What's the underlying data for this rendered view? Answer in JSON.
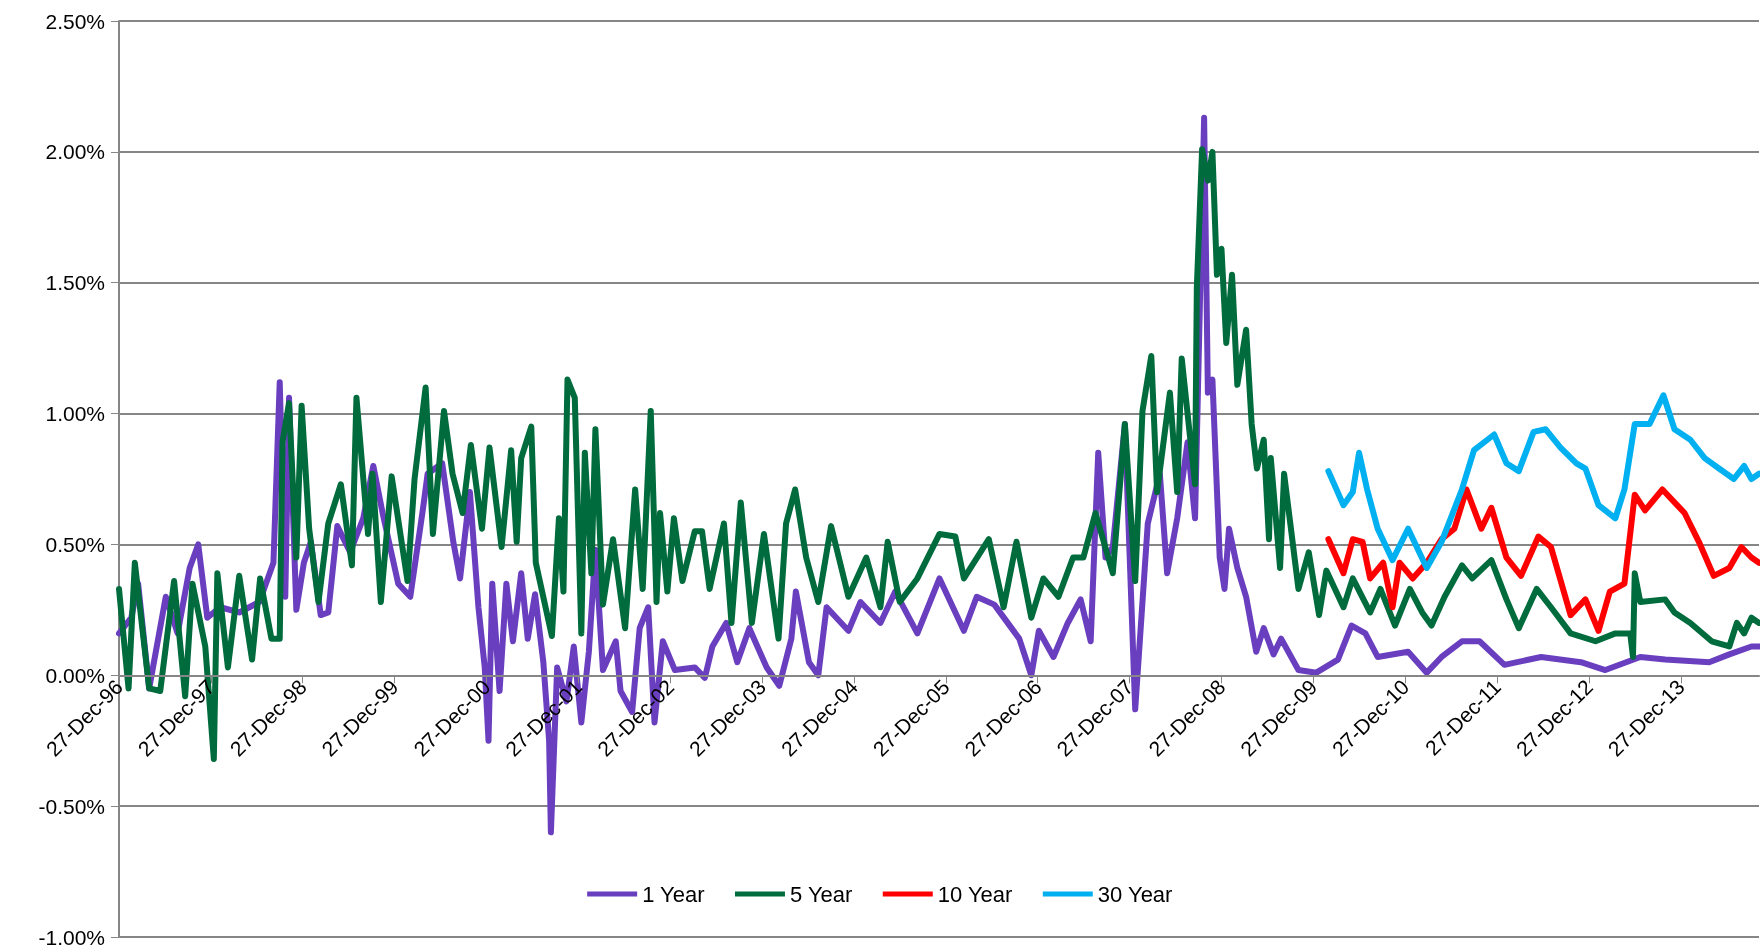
{
  "chart_data": {
    "type": "line",
    "grid": "y",
    "legend": "bottom",
    "line_style": "solid",
    "xlim": [
      "1996-12-27",
      "2014-11-03"
    ],
    "xticks": [
      {
        "value": "1996-12-27",
        "label": "27-Dec-96"
      },
      {
        "value": "1997-12-27",
        "label": "27-Dec-97"
      },
      {
        "value": "1998-12-27",
        "label": "27-Dec-98"
      },
      {
        "value": "1999-12-27",
        "label": "27-Dec-99"
      },
      {
        "value": "2000-12-27",
        "label": "27-Dec-00"
      },
      {
        "value": "2001-12-27",
        "label": "27-Dec-01"
      },
      {
        "value": "2002-12-27",
        "label": "27-Dec-02"
      },
      {
        "value": "2003-12-27",
        "label": "27-Dec-03"
      },
      {
        "value": "2004-12-27",
        "label": "27-Dec-04"
      },
      {
        "value": "2005-12-27",
        "label": "27-Dec-05"
      },
      {
        "value": "2006-12-27",
        "label": "27-Dec-06"
      },
      {
        "value": "2007-12-27",
        "label": "27-Dec-07"
      },
      {
        "value": "2008-12-27",
        "label": "27-Dec-08"
      },
      {
        "value": "2009-12-27",
        "label": "27-Dec-09"
      },
      {
        "value": "2010-12-27",
        "label": "27-Dec-10"
      },
      {
        "value": "2011-12-27",
        "label": "27-Dec-11"
      },
      {
        "value": "2012-12-27",
        "label": "27-Dec-12"
      },
      {
        "value": "2013-12-27",
        "label": "27-Dec-13"
      }
    ],
    "ylim": [
      -1,
      2.5
    ],
    "yticks": [
      {
        "value": -1,
        "label": "-1.00%"
      },
      {
        "value": -0.5,
        "label": "-0.50%"
      },
      {
        "value": 0,
        "label": "0.00%"
      },
      {
        "value": 0.5,
        "label": "0.50%"
      },
      {
        "value": 1,
        "label": "1.00%"
      },
      {
        "value": 1.5,
        "label": "1.50%"
      },
      {
        "value": 2,
        "label": "2.00%"
      },
      {
        "value": 2.5,
        "label": "2.50%"
      }
    ],
    "series": [
      {
        "name": "1 Year",
        "color": "#6a3fbf",
        "x": [
          "1996-12-27",
          "1997-02-14",
          "1997-03-13",
          "1997-04-26",
          "1997-07-01",
          "1997-08-17",
          "1997-10-04",
          "1997-11-07",
          "1997-12-13",
          "1998-02-03",
          "1998-04-19",
          "1998-07-08",
          "1998-09-02",
          "1998-09-27",
          "1998-10-19",
          "1998-11-03",
          "1998-12-02",
          "1999-01-01",
          "1999-01-29",
          "1999-03-09",
          "1999-04-08",
          "1999-05-14",
          "1999-07-04",
          "1999-08-25",
          "1999-10-04",
          "1999-11-10",
          "2000-01-11",
          "2000-02-28",
          "2000-04-19",
          "2000-05-07",
          "2000-07-04",
          "2000-08-17",
          "2000-09-13",
          "2000-10-22",
          "2000-11-25",
          "2000-12-20",
          "2001-01-04",
          "2001-01-19",
          "2001-02-17",
          "2001-03-16",
          "2001-04-11",
          "2001-05-14",
          "2001-06-09",
          "2001-07-08",
          "2001-08-10",
          "2001-09-02",
          "2001-09-09",
          "2001-10-04",
          "2001-11-10",
          "2001-12-09",
          "2002-01-08",
          "2002-02-07",
          "2002-03-05",
          "2002-04-04",
          "2002-05-25",
          "2002-06-13",
          "2002-07-29",
          "2002-08-28",
          "2002-10-01",
          "2002-10-26",
          "2002-11-28",
          "2003-01-15",
          "2003-04-04",
          "2003-05-14",
          "2003-06-13",
          "2003-08-07",
          "2003-09-20",
          "2003-11-07",
          "2004-01-15",
          "2004-03-05",
          "2004-04-22",
          "2004-05-10",
          "2004-07-01",
          "2004-08-07",
          "2004-09-09",
          "2004-12-05",
          "2005-01-22",
          "2005-04-11",
          "2005-06-09",
          "2005-09-05",
          "2005-12-02",
          "2006-03-09",
          "2006-04-29",
          "2006-07-08",
          "2006-10-15",
          "2006-12-02",
          "2007-01-01",
          "2007-02-28",
          "2007-04-26",
          "2007-06-16",
          "2007-07-26",
          "2007-08-25",
          "2007-09-23",
          "2007-10-22",
          "2007-12-09",
          "2008-01-19",
          "2008-03-09",
          "2008-04-26",
          "2008-05-25",
          "2008-07-04",
          "2008-08-14",
          "2008-09-13",
          "2008-10-19",
          "2008-11-03",
          "2008-11-21",
          "2008-12-20",
          "2009-01-08",
          "2009-01-26",
          "2009-02-28",
          "2009-04-04",
          "2009-05-14",
          "2009-06-13",
          "2009-07-22",
          "2009-08-21",
          "2009-10-29",
          "2010-01-08",
          "2010-04-04",
          "2010-05-28",
          "2010-07-22",
          "2010-09-09",
          "2011-01-08",
          "2011-03-23",
          "2011-05-21",
          "2011-08-10",
          "2011-10-19",
          "2012-01-26",
          "2012-06-20",
          "2012-11-25",
          "2013-03-02",
          "2013-07-19",
          "2013-10-26",
          "2014-04-19",
          "2014-07-08",
          "2014-10-04",
          "2014-11-03"
        ],
        "values": [
          0.16,
          0.22,
          0.35,
          -0.05,
          0.3,
          0.16,
          0.41,
          0.5,
          0.22,
          0.26,
          0.24,
          0.28,
          0.43,
          1.12,
          0.3,
          1.06,
          0.25,
          0.43,
          0.51,
          0.23,
          0.24,
          0.57,
          0.47,
          0.6,
          0.8,
          0.62,
          0.35,
          0.3,
          0.64,
          0.77,
          0.81,
          0.51,
          0.37,
          0.7,
          0.26,
          0.03,
          -0.25,
          0.35,
          -0.06,
          0.35,
          0.13,
          0.39,
          0.14,
          0.31,
          0.05,
          -0.25,
          -0.6,
          0.03,
          -0.1,
          0.11,
          -0.18,
          0.09,
          0.48,
          0.02,
          0.13,
          -0.06,
          -0.14,
          0.18,
          0.26,
          -0.18,
          0.13,
          0.02,
          0.03,
          -0.01,
          0.11,
          0.2,
          0.05,
          0.18,
          0.03,
          -0.04,
          0.14,
          0.32,
          0.05,
          0.0,
          0.26,
          0.17,
          0.28,
          0.2,
          0.32,
          0.16,
          0.37,
          0.17,
          0.3,
          0.27,
          0.14,
          0.0,
          0.17,
          0.07,
          0.2,
          0.29,
          0.13,
          0.85,
          0.45,
          0.49,
          0.96,
          -0.13,
          0.58,
          0.77,
          0.39,
          0.6,
          0.89,
          0.6,
          2.13,
          1.08,
          1.13,
          0.45,
          0.33,
          0.56,
          0.41,
          0.3,
          0.09,
          0.18,
          0.08,
          0.14,
          0.02,
          0.01,
          0.06,
          0.19,
          0.16,
          0.07,
          0.09,
          0.01,
          0.07,
          0.13,
          0.13,
          0.04,
          0.07,
          0.05,
          0.02,
          0.07,
          0.06,
          0.05,
          0.08,
          0.11,
          0.11
        ]
      },
      {
        "name": "5 Year",
        "color": "#006b3c",
        "x": [
          "1996-12-27",
          "1997-02-03",
          "1997-02-28",
          "1997-04-26",
          "1997-06-09",
          "1997-08-03",
          "1997-09-16",
          "1997-10-15",
          "1997-12-05",
          "1998-01-08",
          "1998-01-22",
          "1998-03-05",
          "1998-04-19",
          "1998-06-09",
          "1998-07-11",
          "1998-08-25",
          "1998-09-27",
          "1998-10-08",
          "1998-11-03",
          "1998-12-02",
          "1998-12-23",
          "1999-01-22",
          "1999-02-28",
          "1999-04-08",
          "1999-05-28",
          "1999-07-11",
          "1999-07-29",
          "1999-09-13",
          "1999-10-01",
          "1999-11-03",
          "1999-12-16",
          "2000-02-17",
          "2000-03-16",
          "2000-04-29",
          "2000-05-28",
          "2000-07-11",
          "2000-08-14",
          "2000-09-23",
          "2000-10-26",
          "2000-12-09",
          "2001-01-08",
          "2001-02-25",
          "2001-04-04",
          "2001-04-26",
          "2001-05-14",
          "2001-06-23",
          "2001-07-11",
          "2001-09-13",
          "2001-10-11",
          "2001-10-29",
          "2001-11-14",
          "2001-12-13",
          "2002-01-08",
          "2002-01-22",
          "2002-02-17",
          "2002-03-05",
          "2002-04-04",
          "2002-05-14",
          "2002-07-01",
          "2002-08-10",
          "2002-09-09",
          "2002-10-11",
          "2002-11-03",
          "2002-11-17",
          "2002-12-16",
          "2003-01-11",
          "2003-02-14",
          "2003-04-04",
          "2003-05-03",
          "2003-06-02",
          "2003-07-29",
          "2003-08-28",
          "2003-10-04",
          "2003-11-17",
          "2004-01-04",
          "2004-03-02",
          "2004-04-01",
          "2004-05-07",
          "2004-06-20",
          "2004-08-07",
          "2004-09-27",
          "2004-12-05",
          "2005-02-14",
          "2005-04-11",
          "2005-05-10",
          "2005-06-27",
          "2005-09-05",
          "2005-12-02",
          "2006-02-03",
          "2006-03-09",
          "2006-06-16",
          "2006-08-14",
          "2006-10-04",
          "2006-12-02",
          "2007-01-19",
          "2007-03-20",
          "2007-05-17",
          "2007-06-27",
          "2007-08-14",
          "2007-10-22",
          "2007-12-09",
          "2008-01-19",
          "2008-02-17",
          "2008-03-23",
          "2008-04-15",
          "2008-06-05",
          "2008-07-04",
          "2008-07-22",
          "2008-09-13",
          "2008-09-20",
          "2008-10-11",
          "2008-11-03",
          "2008-11-21",
          "2008-12-09",
          "2008-12-27",
          "2009-01-15",
          "2009-02-07",
          "2009-02-28",
          "2009-04-04",
          "2009-04-26",
          "2009-05-17",
          "2009-06-13",
          "2009-07-04",
          "2009-07-11",
          "2009-08-17",
          "2009-09-02",
          "2009-10-29",
          "2009-12-09",
          "2010-01-19",
          "2010-02-17",
          "2010-04-26",
          "2010-06-02",
          "2010-08-10",
          "2010-09-20",
          "2010-11-17",
          "2011-01-15",
          "2011-03-05",
          "2011-04-11",
          "2011-06-02",
          "2011-08-10",
          "2011-09-20",
          "2011-12-05",
          "2012-02-03",
          "2012-03-23",
          "2012-06-02",
          "2012-07-29",
          "2012-10-15",
          "2013-01-22",
          "2013-04-11",
          "2013-06-09",
          "2013-06-20",
          "2013-06-27",
          "2013-07-19",
          "2013-10-26",
          "2013-12-02",
          "2014-02-03",
          "2014-04-29",
          "2014-07-08",
          "2014-08-07",
          "2014-09-05",
          "2014-10-04",
          "2014-11-03"
        ],
        "values": [
          0.33,
          -0.05,
          0.43,
          -0.05,
          -0.06,
          0.36,
          -0.08,
          0.35,
          0.11,
          -0.32,
          0.39,
          0.03,
          0.38,
          0.06,
          0.37,
          0.14,
          0.14,
          0.89,
          1.04,
          0.45,
          1.03,
          0.56,
          0.28,
          0.58,
          0.73,
          0.42,
          1.06,
          0.54,
          0.77,
          0.28,
          0.76,
          0.36,
          0.75,
          1.1,
          0.54,
          1.01,
          0.77,
          0.62,
          0.88,
          0.56,
          0.87,
          0.49,
          0.86,
          0.51,
          0.83,
          0.95,
          0.43,
          0.15,
          0.6,
          0.32,
          1.13,
          1.06,
          0.16,
          0.85,
          0.39,
          0.94,
          0.27,
          0.52,
          0.18,
          0.71,
          0.33,
          1.01,
          0.28,
          0.62,
          0.32,
          0.6,
          0.36,
          0.55,
          0.55,
          0.33,
          0.58,
          0.2,
          0.66,
          0.2,
          0.54,
          0.14,
          0.58,
          0.71,
          0.45,
          0.28,
          0.57,
          0.3,
          0.45,
          0.26,
          0.51,
          0.28,
          0.37,
          0.54,
          0.53,
          0.37,
          0.52,
          0.26,
          0.51,
          0.22,
          0.37,
          0.3,
          0.45,
          0.45,
          0.62,
          0.39,
          0.96,
          0.36,
          1.01,
          1.22,
          0.7,
          1.08,
          0.7,
          1.21,
          0.73,
          1.48,
          2.01,
          1.89,
          2.0,
          1.53,
          1.63,
          1.27,
          1.53,
          1.11,
          1.32,
          0.96,
          0.79,
          0.9,
          0.52,
          0.83,
          0.41,
          0.77,
          0.33,
          0.47,
          0.23,
          0.4,
          0.26,
          0.37,
          0.24,
          0.33,
          0.19,
          0.33,
          0.24,
          0.19,
          0.3,
          0.42,
          0.37,
          0.44,
          0.29,
          0.18,
          0.33,
          0.26,
          0.16,
          0.13,
          0.16,
          0.16,
          0.07,
          0.39,
          0.28,
          0.29,
          0.24,
          0.2,
          0.13,
          0.11,
          0.2,
          0.16,
          0.22,
          0.2
        ]
      },
      {
        "name": "10 Year",
        "color": "#ff0000",
        "x": [
          "2010-02-25",
          "2010-04-26",
          "2010-06-02",
          "2010-07-11",
          "2010-08-10",
          "2010-10-01",
          "2010-11-07",
          "2010-12-05",
          "2011-01-26",
          "2011-03-23",
          "2011-05-21",
          "2011-07-11",
          "2011-08-28",
          "2011-10-26",
          "2011-12-05",
          "2012-02-03",
          "2012-04-01",
          "2012-06-09",
          "2012-07-29",
          "2012-10-15",
          "2012-12-13",
          "2013-02-03",
          "2013-03-20",
          "2013-05-17",
          "2013-06-27",
          "2013-08-07",
          "2013-10-15",
          "2014-01-11",
          "2014-03-09",
          "2014-05-07",
          "2014-07-08",
          "2014-08-25",
          "2014-10-04",
          "2014-11-03"
        ],
        "values": [
          0.52,
          0.39,
          0.52,
          0.51,
          0.37,
          0.43,
          0.26,
          0.43,
          0.37,
          0.43,
          0.52,
          0.56,
          0.71,
          0.56,
          0.64,
          0.45,
          0.38,
          0.53,
          0.49,
          0.23,
          0.29,
          0.17,
          0.32,
          0.35,
          0.69,
          0.63,
          0.71,
          0.62,
          0.51,
          0.38,
          0.41,
          0.49,
          0.45,
          0.43
        ]
      },
      {
        "name": "30 Year",
        "color": "#00b0f0",
        "x": [
          "2010-02-25",
          "2010-04-26",
          "2010-06-02",
          "2010-06-27",
          "2010-07-29",
          "2010-09-09",
          "2010-11-07",
          "2011-01-08",
          "2011-03-23",
          "2011-05-21",
          "2011-08-10",
          "2011-09-27",
          "2011-12-16",
          "2012-02-03",
          "2012-03-23",
          "2012-05-21",
          "2012-07-08",
          "2012-09-05",
          "2012-11-07",
          "2012-12-13",
          "2013-02-03",
          "2013-04-11",
          "2013-05-17",
          "2013-06-27",
          "2013-08-25",
          "2013-10-19",
          "2013-12-02",
          "2014-02-03",
          "2014-04-01",
          "2014-05-28",
          "2014-07-26",
          "2014-09-05",
          "2014-10-04",
          "2014-11-03"
        ],
        "values": [
          0.78,
          0.65,
          0.7,
          0.85,
          0.71,
          0.56,
          0.44,
          0.56,
          0.41,
          0.51,
          0.71,
          0.86,
          0.92,
          0.81,
          0.78,
          0.93,
          0.94,
          0.87,
          0.81,
          0.79,
          0.65,
          0.6,
          0.71,
          0.96,
          0.96,
          1.07,
          0.94,
          0.9,
          0.83,
          0.79,
          0.75,
          0.8,
          0.75,
          0.77
        ]
      }
    ]
  }
}
